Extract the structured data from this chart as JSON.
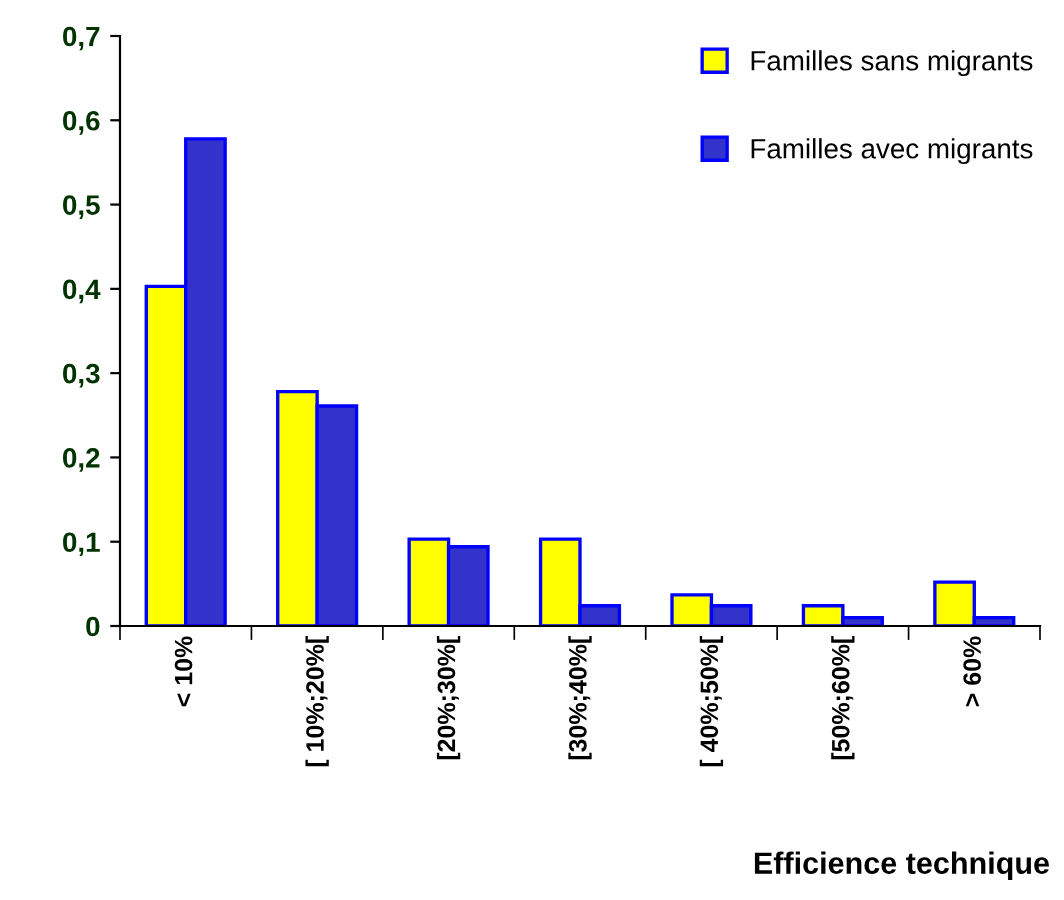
{
  "chart_data": {
    "type": "bar",
    "xlabel": "Efficience technique",
    "categories": [
      "< 10%",
      "[ 10%;20%[",
      "[20%;30%[",
      "[30%;40%[",
      "[ 40%;50%[",
      "[50%;60%[",
      "> 60%"
    ],
    "series": [
      {
        "name": "Familles sans migrants",
        "color": "#ffff00",
        "values": [
          0.403,
          0.278,
          0.103,
          0.103,
          0.037,
          0.024,
          0.052
        ]
      },
      {
        "name": "Familles avec migrants",
        "color": "#3333cc",
        "values": [
          0.578,
          0.261,
          0.094,
          0.024,
          0.024,
          0.01,
          0.01
        ]
      }
    ],
    "ylim": [
      0,
      0.7
    ],
    "yticks": [
      {
        "value": 0,
        "label": "0"
      },
      {
        "value": 0.1,
        "label": "0,1"
      },
      {
        "value": 0.2,
        "label": "0,2"
      },
      {
        "value": 0.3,
        "label": "0,3"
      },
      {
        "value": 0.4,
        "label": "0,4"
      },
      {
        "value": 0.5,
        "label": "0,5"
      },
      {
        "value": 0.6,
        "label": "0,6"
      },
      {
        "value": 0.7,
        "label": "0,7"
      }
    ],
    "grid": false,
    "legend": "top right"
  }
}
